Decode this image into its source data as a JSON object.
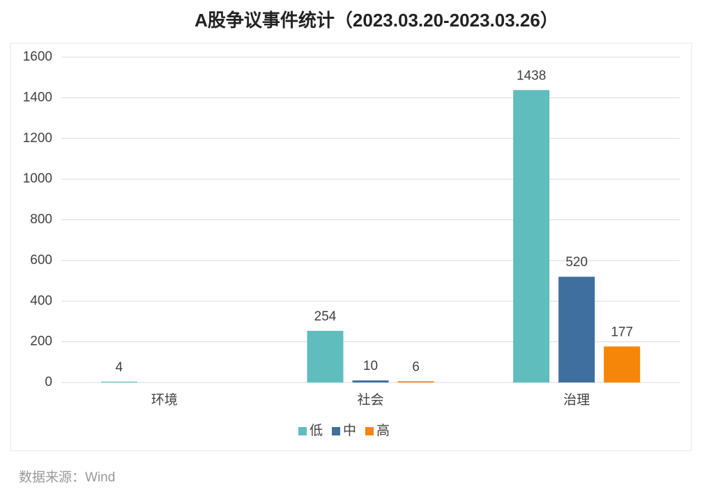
{
  "chart_data": {
    "type": "bar",
    "title": "A股争议事件统计（2023.03.20-2023.03.26）",
    "categories": [
      "环境",
      "社会",
      "治理"
    ],
    "series": [
      {
        "name": "低",
        "color": "#5fbdbe",
        "values": [
          4,
          254,
          1438
        ]
      },
      {
        "name": "中",
        "color": "#3f6f9f",
        "values": [
          null,
          10,
          520
        ]
      },
      {
        "name": "高",
        "color": "#f5860a",
        "values": [
          null,
          6,
          177
        ]
      }
    ],
    "ylim": [
      0,
      1600
    ],
    "yticks": [
      0,
      200,
      400,
      600,
      800,
      1000,
      1200,
      1400,
      1600
    ],
    "grid": true,
    "legend": "bottom",
    "source": "数据来源：Wind"
  }
}
